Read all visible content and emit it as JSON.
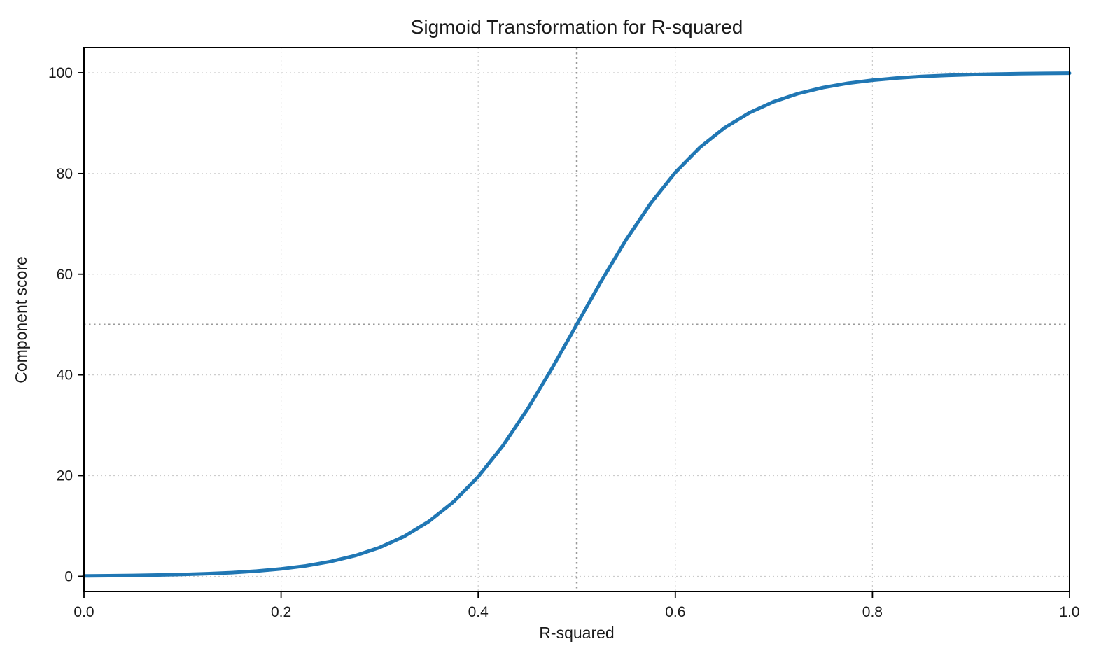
{
  "chart_data": {
    "type": "line",
    "title": "Sigmoid Transformation for R-squared",
    "xlabel": "R-squared",
    "ylabel": "Component score",
    "xlim": [
      0.0,
      1.0
    ],
    "ylim": [
      -3,
      105
    ],
    "x_ticks": [
      0.0,
      0.2,
      0.4,
      0.6,
      0.8,
      1.0
    ],
    "x_tick_labels": [
      "0.0",
      "0.2",
      "0.4",
      "0.6",
      "0.8",
      "1.0"
    ],
    "y_ticks": [
      0,
      20,
      40,
      60,
      80,
      100
    ],
    "y_tick_labels": [
      "0",
      "20",
      "40",
      "60",
      "80",
      "100"
    ],
    "grid": true,
    "legend": "none",
    "line_color": "#2077b4",
    "line_width": 5,
    "grid_color": "#cccccc",
    "reference_line_color": "#9a9a9a",
    "axis_color": "#000000",
    "reference_lines": {
      "vertical_x": 0.5,
      "horizontal_y": 50,
      "style": "dotted"
    },
    "series": [
      {
        "name": "sigmoid",
        "x": [
          0.0,
          0.025,
          0.05,
          0.075,
          0.1,
          0.125,
          0.15,
          0.175,
          0.2,
          0.225,
          0.25,
          0.275,
          0.3,
          0.325,
          0.35,
          0.375,
          0.4,
          0.425,
          0.45,
          0.475,
          0.5,
          0.525,
          0.55,
          0.575,
          0.6,
          0.625,
          0.65,
          0.675,
          0.7,
          0.725,
          0.75,
          0.775,
          0.8,
          0.825,
          0.85,
          0.875,
          0.9,
          0.925,
          0.95,
          0.975,
          1.0
        ],
        "y": [
          0.09,
          0.13,
          0.18,
          0.26,
          0.37,
          0.52,
          0.74,
          1.05,
          1.48,
          2.08,
          2.93,
          4.11,
          5.73,
          7.94,
          10.91,
          14.8,
          19.78,
          25.92,
          33.18,
          41.34,
          50.0,
          58.66,
          66.82,
          74.08,
          80.22,
          85.2,
          89.09,
          92.06,
          94.27,
          95.89,
          97.07,
          97.92,
          98.52,
          98.95,
          99.26,
          99.48,
          99.63,
          99.74,
          99.82,
          99.87,
          99.91
        ]
      }
    ]
  }
}
